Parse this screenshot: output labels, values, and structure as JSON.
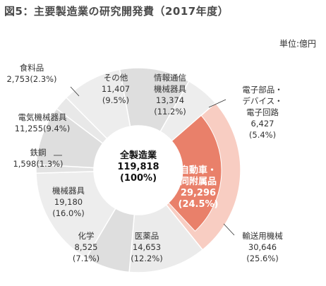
{
  "title": "図5：主要製造業の研究開発費（2017年度）",
  "unit": "単位:億円",
  "chart_data": {
    "type": "pie",
    "style": "donut",
    "title": "図5：主要製造業の研究開発費（2017年度）",
    "unit": "億円",
    "total": {
      "name": "全製造業",
      "value": "119,818",
      "pct": "(100%)"
    },
    "slices": [
      {
        "name": "情報通信機械器具",
        "lines": [
          "情報通信",
          "機械器具"
        ],
        "value": 13374,
        "value_text": "13,374",
        "pct": "(11.2%)",
        "color": "#dedede"
      },
      {
        "name": "電子部品・デバイス・電子回路",
        "lines": [
          "電子部品・",
          "デバイス・",
          "電子回路"
        ],
        "value": 6427,
        "value_text": "6,427",
        "pct": "(5.4%)",
        "color": "#ededed"
      },
      {
        "name": "輸送用機械",
        "lines": [
          "輸送用機械"
        ],
        "value": 30646,
        "value_text": "30,646",
        "pct": "(25.6%)",
        "color": "#f8cdc2"
      },
      {
        "name": "医薬品",
        "lines": [
          "医薬品"
        ],
        "value": 14653,
        "value_text": "14,653",
        "pct": "(12.2%)",
        "color": "#ebebeb"
      },
      {
        "name": "化学",
        "lines": [
          "化学"
        ],
        "value": 8525,
        "value_text": "8,525",
        "pct": "(7.1%)",
        "color": "#dedede"
      },
      {
        "name": "機械器具",
        "lines": [
          "機械器具"
        ],
        "value": 19180,
        "value_text": "19,180",
        "pct": "(16.0%)",
        "color": "#ededed"
      },
      {
        "name": "鉄鋼",
        "lines": [
          "鉄鋼"
        ],
        "value": 1598,
        "value_text": "1,598",
        "pct": "(1.3%)",
        "color": "#e3e3e3"
      },
      {
        "name": "電気機械器具",
        "lines": [
          "電気機械器具"
        ],
        "value": 11255,
        "value_text": "11,255",
        "pct": "(9.4%)",
        "color": "#dedede"
      },
      {
        "name": "食料品",
        "lines": [
          "食料品"
        ],
        "value": 2753,
        "value_text": "2,753",
        "pct": "(2.3%)",
        "color": "#e8e8e8"
      },
      {
        "name": "その他",
        "lines": [
          "その他"
        ],
        "value": 11407,
        "value_text": "11,407",
        "pct": "(9.5%)",
        "color": "#ededed"
      }
    ],
    "inner_highlight": {
      "name": "自動車・同附属品",
      "lines": [
        "自動車・",
        "同附属品"
      ],
      "value": 29296,
      "value_text": "29,296",
      "pct": "(24.5%)",
      "color": "#e9806a",
      "part_of": "輸送用機械"
    }
  }
}
